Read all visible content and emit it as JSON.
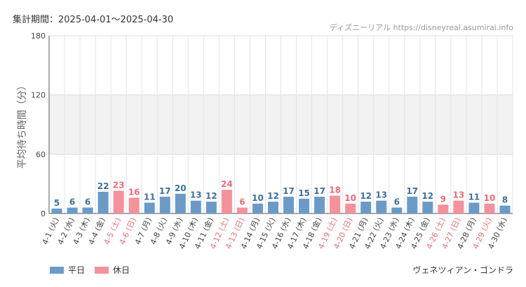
{
  "period_label": "集計期間：2025-04-01〜2025-04-30",
  "source_label": "ディズニーリアル https://disneyreal.asumirai.info",
  "attraction_name": "ヴェネツィアン・ゴンドラ",
  "legend": [
    {
      "label": "平日",
      "color": "#6a9bc8"
    },
    {
      "label": "休日",
      "color": "#f4919a"
    }
  ],
  "colors": {
    "weekday": "#6a9bc8",
    "holiday": "#f4919a",
    "weekday_text": "#3f6f9e",
    "holiday_text": "#ee6b77"
  },
  "chart_data": {
    "type": "bar",
    "ylabel": "平均待ち時間（分）",
    "ylim": [
      0,
      180
    ],
    "yticks": [
      0,
      60,
      120,
      180
    ],
    "grid": true,
    "legend_position": "bottom-left",
    "categories": [
      "4-1 (火)",
      "4-2 (水)",
      "4-3 (木)",
      "4-4 (金)",
      "4-5 (土)",
      "4-6 (日)",
      "4-7 (月)",
      "4-8 (火)",
      "4-9 (水)",
      "4-10 (木)",
      "4-11 (金)",
      "4-12 (土)",
      "4-13 (日)",
      "4-14 (月)",
      "4-15 (火)",
      "4-16 (水)",
      "4-17 (木)",
      "4-18 (金)",
      "4-19 (土)",
      "4-20 (日)",
      "4-21 (月)",
      "4-22 (火)",
      "4-23 (水)",
      "4-24 (木)",
      "4-25 (金)",
      "4-26 (土)",
      "4-27 (日)",
      "4-28 (月)",
      "4-29 (火)",
      "4-30 (水)"
    ],
    "values": [
      5,
      6,
      6,
      22,
      23,
      16,
      11,
      17,
      20,
      13,
      12,
      24,
      6,
      10,
      12,
      17,
      15,
      17,
      18,
      10,
      12,
      13,
      6,
      17,
      12,
      9,
      13,
      11,
      10,
      8
    ],
    "day_types": [
      "平日",
      "平日",
      "平日",
      "平日",
      "休日",
      "休日",
      "平日",
      "平日",
      "平日",
      "平日",
      "平日",
      "休日",
      "休日",
      "平日",
      "平日",
      "平日",
      "平日",
      "平日",
      "休日",
      "休日",
      "平日",
      "平日",
      "平日",
      "平日",
      "平日",
      "休日",
      "休日",
      "平日",
      "休日",
      "平日"
    ]
  }
}
